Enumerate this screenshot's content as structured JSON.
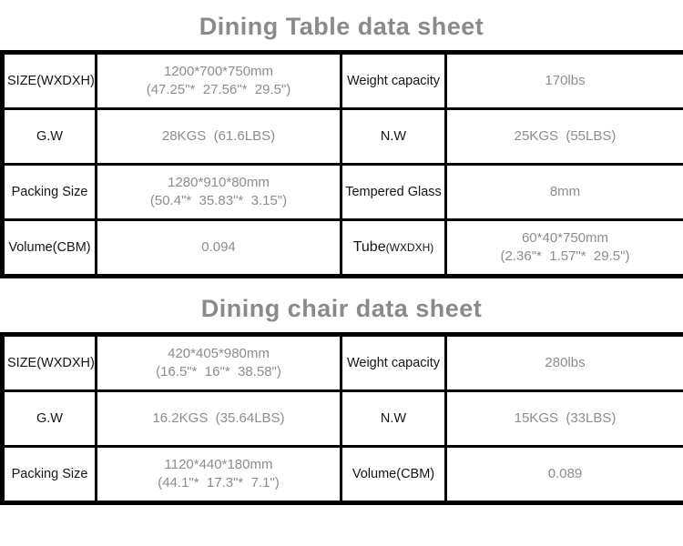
{
  "page": {
    "background_color": "#ffffff",
    "border_color": "#000000",
    "title_color": "#8a8a8a",
    "label_color": "#151515",
    "value_color": "#8d8d8d"
  },
  "tables": [
    {
      "title": "Dining Table data sheet",
      "rows": [
        {
          "cells": [
            {
              "text": "SIZE(WXDXH)"
            },
            {
              "lines": [
                "1200*700*750mm",
                "(47.25\"*  27.56\"*  29.5\")"
              ]
            },
            {
              "text": "Weight capacity"
            },
            {
              "lines": [
                "170lbs"
              ]
            }
          ]
        },
        {
          "cells": [
            {
              "text": "G.W"
            },
            {
              "lines": [
                "28KGS  (61.6LBS)"
              ]
            },
            {
              "text": "N.W"
            },
            {
              "lines": [
                "25KGS  (55LBS)"
              ]
            }
          ]
        },
        {
          "cells": [
            {
              "text": "Packing Size"
            },
            {
              "lines": [
                "1280*910*80mm",
                "(50.4\"*  35.83\"*  3.15\")"
              ]
            },
            {
              "text": "Tempered Glass"
            },
            {
              "lines": [
                "8mm"
              ]
            }
          ]
        },
        {
          "cells": [
            {
              "text": "Volume(CBM)"
            },
            {
              "lines": [
                "0.094"
              ]
            },
            {
              "text": "Tube",
              "suffix": "(WXDXH)"
            },
            {
              "lines": [
                "60*40*750mm",
                "(2.36\"*  1.57\"*  29.5\")"
              ]
            }
          ]
        }
      ]
    },
    {
      "title": "Dining chair data sheet",
      "rows": [
        {
          "cells": [
            {
              "text": "SIZE(WXDXH)"
            },
            {
              "lines": [
                "420*405*980mm",
                "(16.5\"*  16\"*  38.58\")"
              ]
            },
            {
              "text": "Weight capacity"
            },
            {
              "lines": [
                "280lbs"
              ]
            }
          ]
        },
        {
          "cells": [
            {
              "text": "G.W"
            },
            {
              "lines": [
                "16.2KGS  (35.64LBS)"
              ]
            },
            {
              "text": "N.W"
            },
            {
              "lines": [
                "15KGS  (33LBS)"
              ]
            }
          ]
        },
        {
          "cells": [
            {
              "text": "Packing Size"
            },
            {
              "lines": [
                "1120*440*180mm",
                "(44.1\"*  17.3\"*  7.1\")"
              ]
            },
            {
              "text": "Volume(CBM)"
            },
            {
              "lines": [
                "0.089"
              ]
            }
          ]
        }
      ]
    }
  ]
}
